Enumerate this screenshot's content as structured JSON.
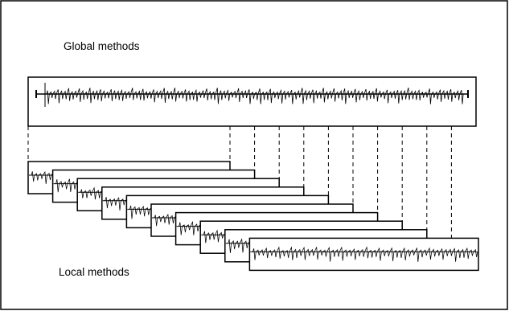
{
  "labels": {
    "global": "Global methods",
    "local": "Local methods"
  },
  "colors": {
    "stroke": "#000000",
    "background": "#ffffff"
  },
  "diagram": {
    "local_window_count": 10
  }
}
